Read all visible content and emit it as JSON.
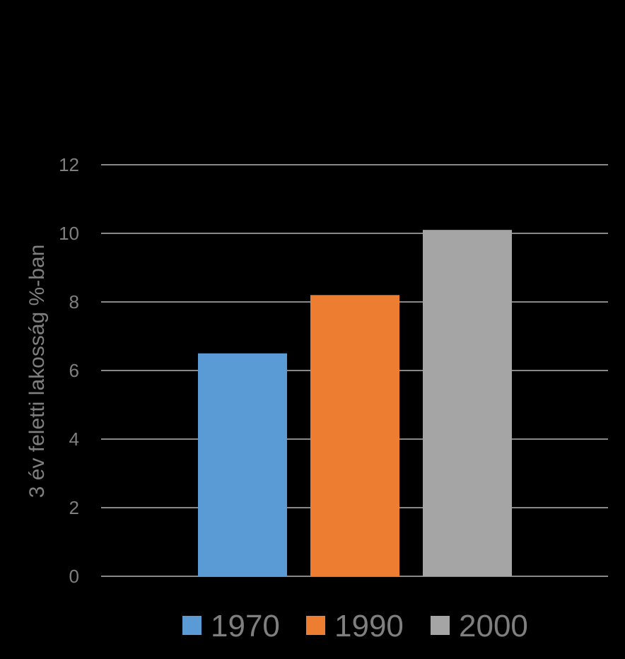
{
  "chart_data": {
    "type": "bar",
    "ylabel": "3 év feletti lakosság %-ban",
    "ylim": [
      0,
      12
    ],
    "yticks": [
      "0",
      "2",
      "4",
      "6",
      "8",
      "10",
      "12"
    ],
    "grid": true,
    "legend_position": "bottom",
    "series": [
      {
        "name": "1970",
        "values": [
          6.5
        ],
        "color": "#5b9bd5"
      },
      {
        "name": "1990",
        "values": [
          8.2
        ],
        "color": "#ed7d31"
      },
      {
        "name": "2000",
        "values": [
          10.1
        ],
        "color": "#a5a5a5"
      }
    ]
  }
}
